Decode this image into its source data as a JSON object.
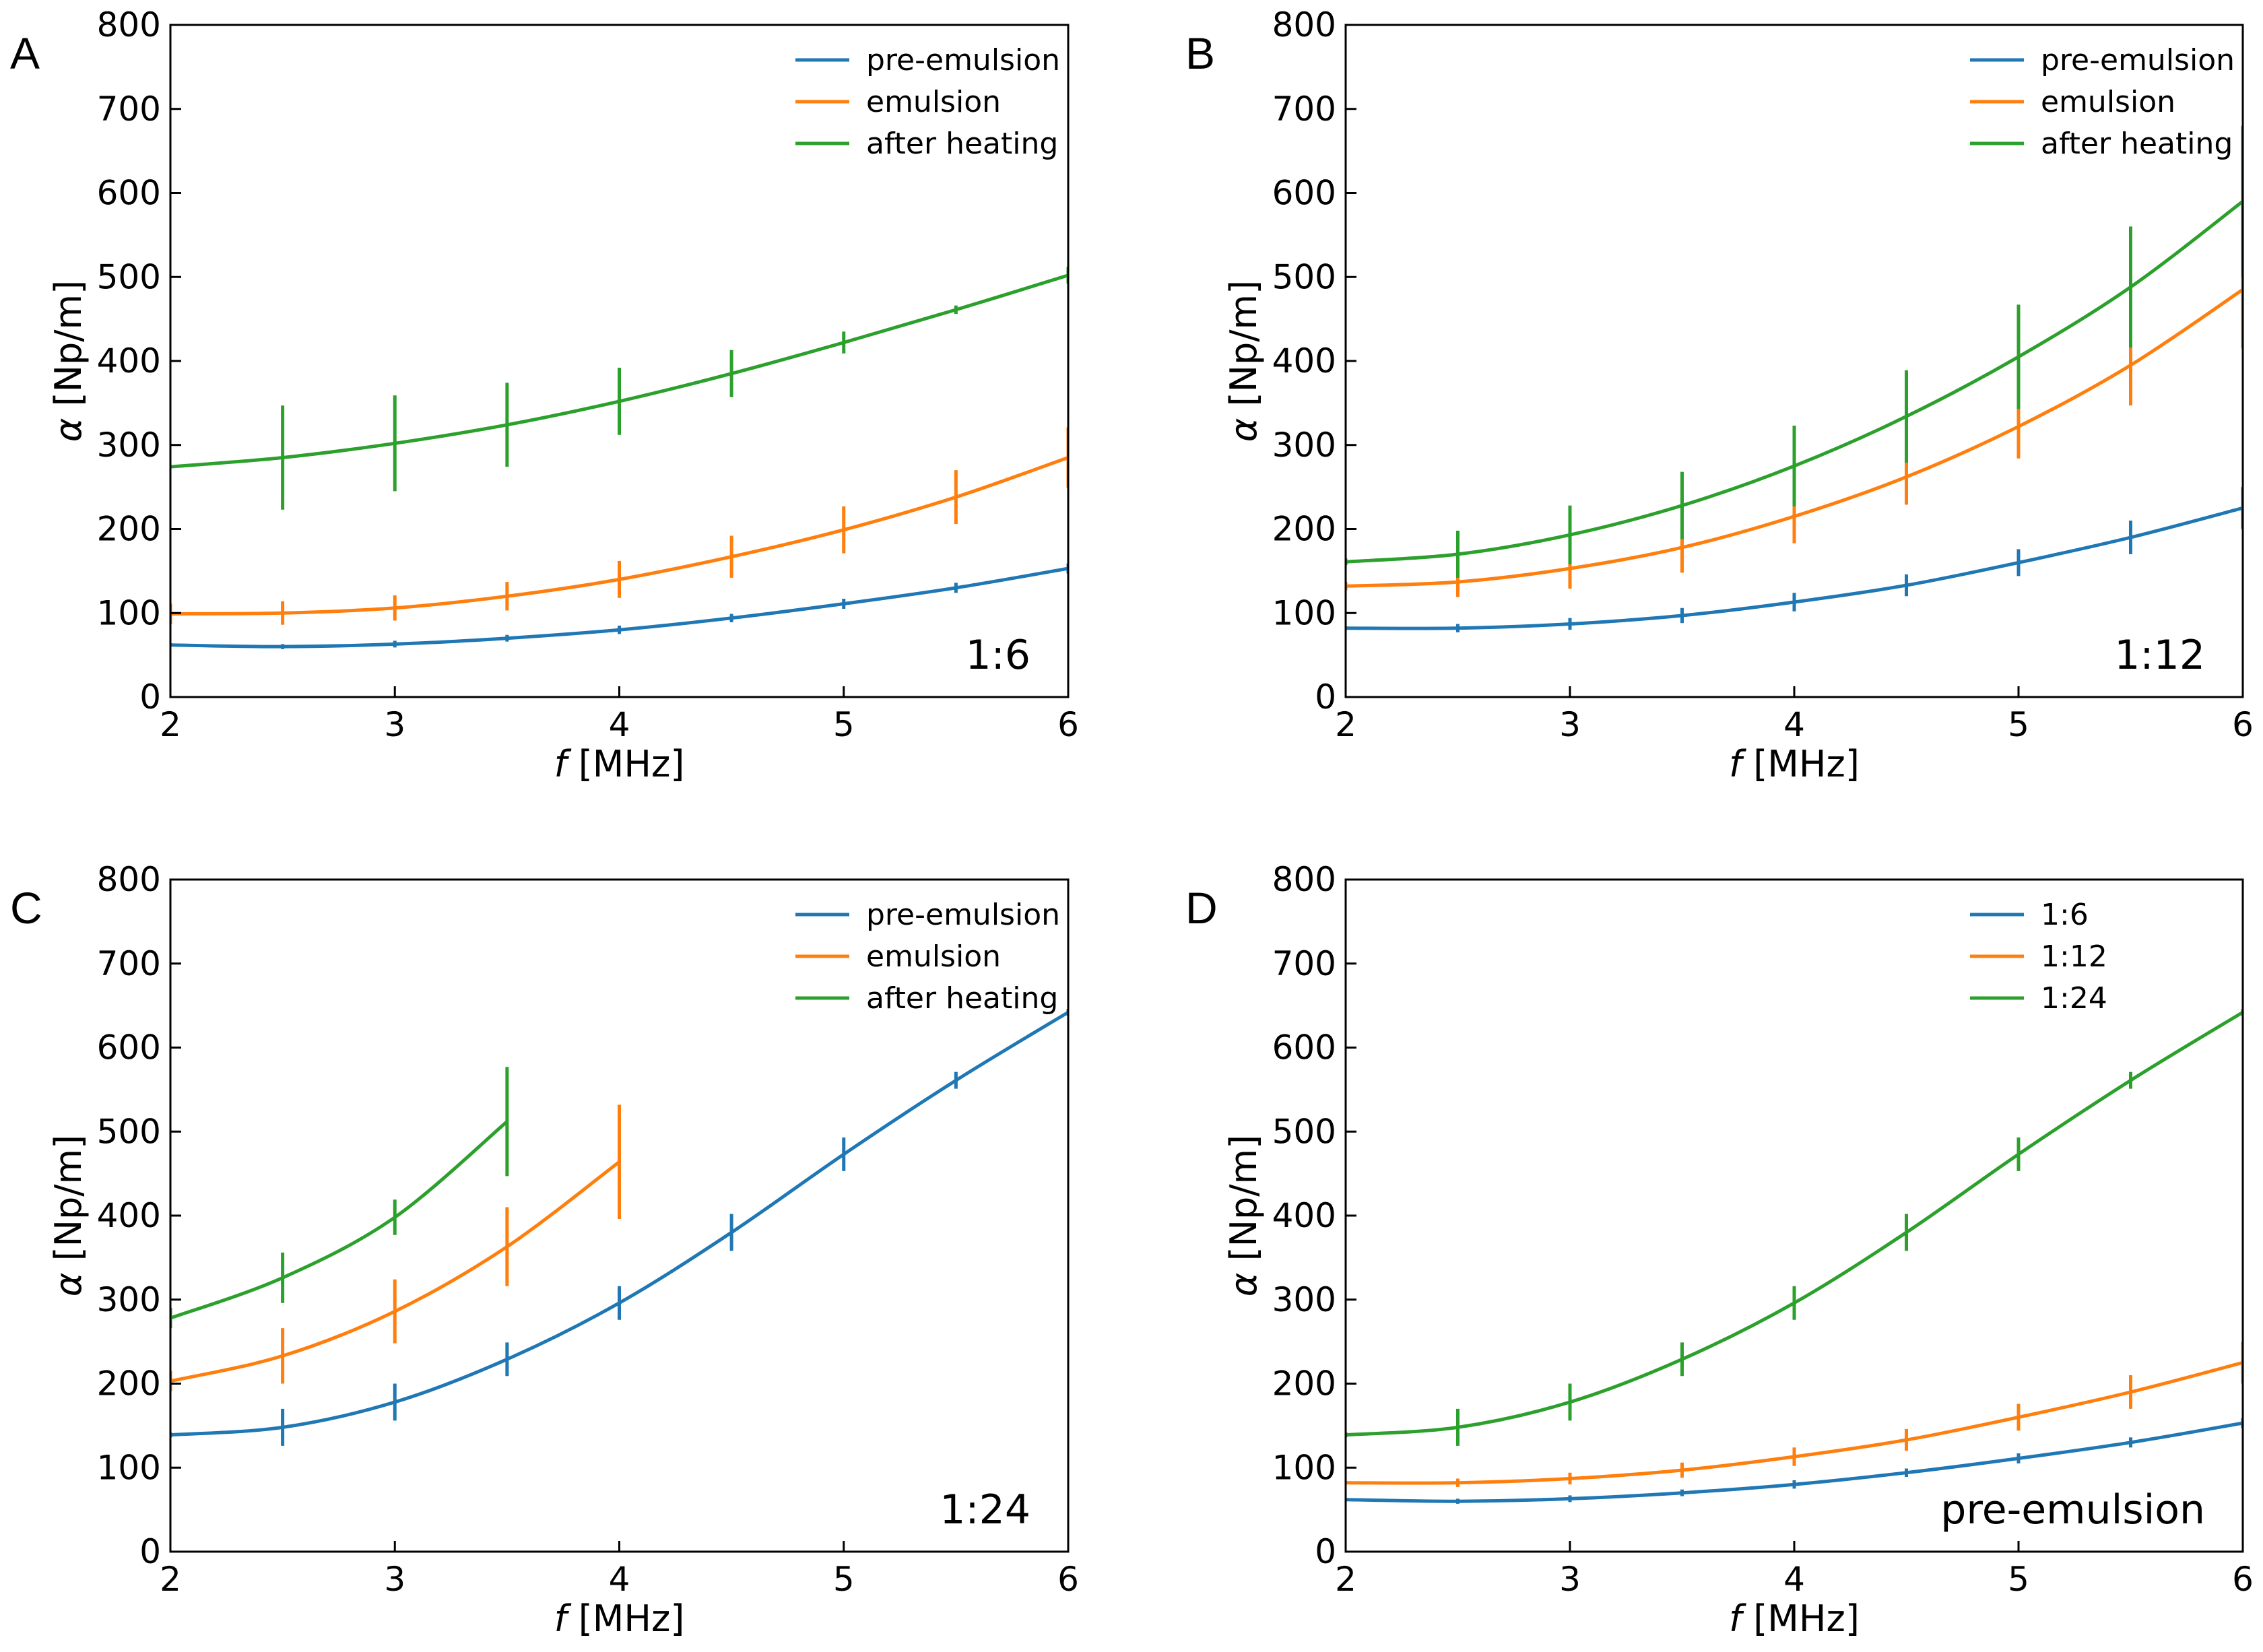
{
  "chart_data": [
    {
      "type": "line",
      "panel": "A",
      "annotation": "1:6",
      "xlabel_italic": "f",
      "xlabel_unit": " [MHz]",
      "ylabel_italic": "α",
      "ylabel_unit": " [Np/m]",
      "xlim": [
        2,
        6
      ],
      "ylim": [
        0,
        800
      ],
      "xticks": [
        2,
        3,
        4,
        5,
        6
      ],
      "yticks": [
        0,
        100,
        200,
        300,
        400,
        500,
        600,
        700,
        800
      ],
      "legend_position": "top-right",
      "series": [
        {
          "name": "pre-emulsion",
          "color": "#1f77b4",
          "x": [
            2,
            2.5,
            3,
            3.5,
            4,
            4.5,
            5,
            5.5,
            6
          ],
          "y": [
            62,
            60,
            63,
            70,
            80,
            94,
            111,
            130,
            153
          ],
          "err": [
            2,
            3,
            4,
            4,
            5,
            5,
            6,
            6,
            6
          ]
        },
        {
          "name": "emulsion",
          "color": "#ff7f0e",
          "x": [
            2,
            2.5,
            3,
            3.5,
            4,
            4.5,
            5,
            5.5,
            6
          ],
          "y": [
            99,
            100,
            106,
            120,
            140,
            167,
            199,
            238,
            285
          ],
          "err": [
            12,
            14,
            15,
            17,
            22,
            25,
            28,
            32,
            36
          ]
        },
        {
          "name": "after heating",
          "color": "#2ca02c",
          "x": [
            2,
            2.5,
            3,
            3.5,
            4,
            4.5,
            5,
            5.5,
            6
          ],
          "y": [
            274,
            285,
            302,
            324,
            352,
            385,
            422,
            461,
            502
          ],
          "err": [
            0,
            62,
            57,
            50,
            40,
            28,
            13,
            5,
            10
          ]
        }
      ]
    },
    {
      "type": "line",
      "panel": "B",
      "annotation": "1:12",
      "xlabel_italic": "f",
      "xlabel_unit": " [MHz]",
      "ylabel_italic": "α",
      "ylabel_unit": " [Np/m]",
      "xlim": [
        2,
        6
      ],
      "ylim": [
        0,
        800
      ],
      "xticks": [
        2,
        3,
        4,
        5,
        6
      ],
      "yticks": [
        0,
        100,
        200,
        300,
        400,
        500,
        600,
        700,
        800
      ],
      "legend_position": "top-right",
      "series": [
        {
          "name": "pre-emulsion",
          "color": "#1f77b4",
          "x": [
            2,
            2.5,
            3,
            3.5,
            4,
            4.5,
            5,
            5.5,
            6
          ],
          "y": [
            82,
            82,
            87,
            97,
            113,
            133,
            160,
            190,
            225
          ],
          "err": [
            2,
            5,
            7,
            9,
            11,
            13,
            16,
            20,
            25
          ]
        },
        {
          "name": "emulsion",
          "color": "#ff7f0e",
          "x": [
            2,
            2.5,
            3,
            3.5,
            4,
            4.5,
            5,
            5.5,
            6
          ],
          "y": [
            132,
            137,
            153,
            178,
            215,
            262,
            322,
            395,
            485
          ],
          "err": [
            5,
            18,
            24,
            30,
            32,
            33,
            38,
            48,
            70
          ]
        },
        {
          "name": "after heating",
          "color": "#2ca02c",
          "x": [
            2,
            2.5,
            3,
            3.5,
            4,
            4.5,
            5,
            5.5,
            6
          ],
          "y": [
            161,
            170,
            193,
            228,
            275,
            334,
            405,
            488,
            590
          ],
          "err": [
            4,
            28,
            35,
            40,
            48,
            55,
            62,
            72,
            90
          ]
        }
      ]
    },
    {
      "type": "line",
      "panel": "C",
      "annotation": "1:24",
      "xlabel_italic": "f",
      "xlabel_unit": " [MHz]",
      "ylabel_italic": "α",
      "ylabel_unit": " [Np/m]",
      "xlim": [
        2,
        6
      ],
      "ylim": [
        0,
        800
      ],
      "xticks": [
        2,
        3,
        4,
        5,
        6
      ],
      "yticks": [
        0,
        100,
        200,
        300,
        400,
        500,
        600,
        700,
        800
      ],
      "legend_position": "top-right",
      "series": [
        {
          "name": "pre-emulsion",
          "color": "#1f77b4",
          "x": [
            2,
            2.5,
            3,
            3.5,
            4,
            4.5,
            5,
            5.5,
            6
          ],
          "y": [
            139,
            148,
            178,
            229,
            296,
            380,
            473,
            561,
            642
          ],
          "err": [
            3,
            22,
            22,
            20,
            20,
            22,
            20,
            10,
            4
          ]
        },
        {
          "name": "emulsion",
          "color": "#ff7f0e",
          "x": [
            2,
            2.5,
            3,
            3.5,
            4
          ],
          "y": [
            203,
            233,
            286,
            363,
            464
          ],
          "err": [
            12,
            33,
            38,
            47,
            68
          ]
        },
        {
          "name": "after heating",
          "color": "#2ca02c",
          "x": [
            2,
            2.5,
            3,
            3.5
          ],
          "y": [
            278,
            326,
            398,
            512
          ],
          "err": [
            12,
            30,
            21,
            65
          ]
        }
      ]
    },
    {
      "type": "line",
      "panel": "D",
      "annotation": "pre-emulsion",
      "xlabel_italic": "f",
      "xlabel_unit": " [MHz]",
      "ylabel_italic": "α",
      "ylabel_unit": " [Np/m]",
      "xlim": [
        2,
        6
      ],
      "ylim": [
        0,
        800
      ],
      "xticks": [
        2,
        3,
        4,
        5,
        6
      ],
      "yticks": [
        0,
        100,
        200,
        300,
        400,
        500,
        600,
        700,
        800
      ],
      "legend_position": "top-right",
      "series": [
        {
          "name": "1:6",
          "color": "#1f77b4",
          "x": [
            2,
            2.5,
            3,
            3.5,
            4,
            4.5,
            5,
            5.5,
            6
          ],
          "y": [
            62,
            60,
            63,
            70,
            80,
            94,
            111,
            130,
            153
          ],
          "err": [
            2,
            3,
            4,
            4,
            5,
            5,
            6,
            6,
            6
          ]
        },
        {
          "name": "1:12",
          "color": "#ff7f0e",
          "x": [
            2,
            2.5,
            3,
            3.5,
            4,
            4.5,
            5,
            5.5,
            6
          ],
          "y": [
            82,
            82,
            87,
            97,
            113,
            133,
            160,
            190,
            225
          ],
          "err": [
            2,
            5,
            7,
            9,
            11,
            13,
            16,
            20,
            25
          ]
        },
        {
          "name": "1:24",
          "color": "#2ca02c",
          "x": [
            2,
            2.5,
            3,
            3.5,
            4,
            4.5,
            5,
            5.5,
            6
          ],
          "y": [
            139,
            148,
            178,
            229,
            296,
            380,
            473,
            561,
            642
          ],
          "err": [
            3,
            22,
            22,
            20,
            20,
            22,
            20,
            10,
            4
          ]
        }
      ]
    }
  ]
}
